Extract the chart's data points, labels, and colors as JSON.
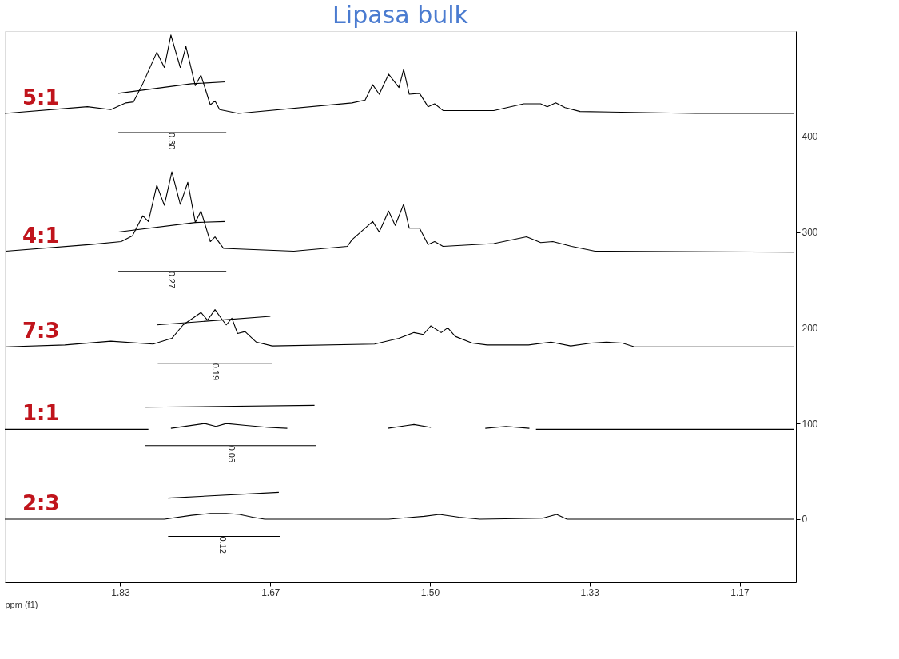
{
  "chart_data": {
    "type": "line",
    "title": "Lipasa bulk",
    "xlabel": "ppm (f1)",
    "xlim": [
      1.953,
      1.11
    ],
    "xticks": [
      1.83,
      1.67,
      {
        "value": 1.5,
        "label": "1.50"
      },
      1.33,
      1.17
    ],
    "ylim": [
      -66,
      510
    ],
    "yticks": [
      0,
      100,
      200,
      300,
      400
    ],
    "grid": false,
    "series": [
      {
        "name": "5:1",
        "color": "#000000",
        "x": [
          1.953,
          1.865,
          1.84,
          1.824,
          1.816,
          1.806,
          1.791,
          1.783,
          1.776,
          1.766,
          1.76,
          1.75,
          1.744,
          1.734,
          1.729,
          1.724,
          1.704,
          1.583,
          1.569,
          1.561,
          1.554,
          1.544,
          1.533,
          1.528,
          1.522,
          1.511,
          1.502,
          1.495,
          1.486,
          1.432,
          1.4,
          1.382,
          1.375,
          1.366,
          1.356,
          1.34,
          1.217,
          1.112
        ],
        "values": [
          424,
          431,
          428,
          435,
          436,
          455,
          488,
          472,
          506,
          472,
          494,
          453,
          464,
          433,
          437,
          428,
          424,
          435,
          438,
          454,
          444,
          465,
          451,
          470,
          444,
          445,
          431,
          434,
          427,
          427,
          434,
          434,
          431,
          435,
          430,
          426,
          424,
          424
        ]
      },
      {
        "name": "4:1",
        "color": "#000000",
        "x": [
          1.952,
          1.861,
          1.829,
          1.817,
          1.806,
          1.8,
          1.791,
          1.783,
          1.775,
          1.766,
          1.758,
          1.75,
          1.744,
          1.734,
          1.729,
          1.72,
          1.645,
          1.588,
          1.583,
          1.561,
          1.554,
          1.544,
          1.537,
          1.528,
          1.522,
          1.511,
          1.502,
          1.495,
          1.486,
          1.432,
          1.397,
          1.382,
          1.369,
          1.349,
          1.324,
          1.112
        ],
        "values": [
          280,
          287,
          290,
          296,
          317,
          311,
          349,
          328,
          363,
          329,
          352,
          310,
          322,
          290,
          295,
          283,
          280,
          285,
          292,
          311,
          300,
          322,
          307,
          329,
          304,
          304,
          287,
          290,
          285,
          288,
          295,
          289,
          290,
          285,
          280,
          279
        ]
      },
      {
        "name": "7:3",
        "color": "#000000",
        "x": [
          1.952,
          1.889,
          1.84,
          1.795,
          1.775,
          1.763,
          1.744,
          1.737,
          1.729,
          1.721,
          1.717,
          1.711,
          1.705,
          1.697,
          1.685,
          1.668,
          1.559,
          1.533,
          1.517,
          1.507,
          1.499,
          1.488,
          1.481,
          1.473,
          1.455,
          1.439,
          1.395,
          1.371,
          1.35,
          1.328,
          1.312,
          1.295,
          1.282,
          1.112
        ],
        "values": [
          180,
          182,
          186,
          183,
          189,
          203,
          216,
          208,
          219,
          208,
          203,
          210,
          194,
          196,
          185,
          181,
          183,
          189,
          195,
          193,
          202,
          195,
          200,
          191,
          184,
          182,
          182,
          185,
          181,
          184,
          185,
          184,
          180,
          180
        ]
      },
      {
        "name": "1:1",
        "color": "#000000",
        "x": [
          1.953,
          1.8,
          1.788,
          1.776,
          1.74,
          1.728,
          1.717,
          1.696,
          1.672,
          1.652,
          1.599,
          1.545,
          1.517,
          1.499,
          1.471,
          1.441,
          1.419,
          1.394,
          1.39,
          1.387,
          1.112
        ],
        "values": [
          94,
          94,
          null,
          95,
          100,
          97,
          100,
          98,
          96,
          95,
          null,
          95,
          99,
          96,
          null,
          95,
          97,
          95,
          null,
          94,
          94
        ]
      },
      {
        "name": "2:3",
        "color": "#000000",
        "x": [
          1.953,
          1.837,
          1.783,
          1.754,
          1.734,
          1.717,
          1.703,
          1.689,
          1.676,
          1.544,
          1.506,
          1.49,
          1.469,
          1.447,
          1.38,
          1.365,
          1.354,
          1.279,
          1.112
        ],
        "values": [
          0,
          0,
          0,
          4,
          6,
          6,
          5,
          2,
          0,
          0,
          3,
          5,
          2,
          0,
          1,
          5,
          0,
          0,
          0
        ]
      },
      {
        "color": "#000000",
        "x": [
          1.832,
          1.754,
          1.718
        ],
        "values": [
          445,
          455,
          457
        ]
      },
      {
        "color": "#000000",
        "x": [
          1.832,
          1.75,
          1.718
        ],
        "values": [
          300,
          310,
          311
        ]
      },
      {
        "color": "#000000",
        "x": [
          1.791,
          1.67
        ],
        "values": [
          203,
          212
        ]
      },
      {
        "color": "#000000",
        "x": [
          1.803,
          1.623
        ],
        "values": [
          117,
          119
        ]
      },
      {
        "color": "#000000",
        "x": [
          1.779,
          1.661
        ],
        "values": [
          22,
          28
        ]
      },
      {
        "color": "#000000",
        "x": [
          1.832,
          1.717
        ],
        "values": [
          404,
          404
        ]
      },
      {
        "color": "#000000",
        "x": [
          1.832,
          1.717
        ],
        "values": [
          259,
          259
        ]
      },
      {
        "color": "#000000",
        "x": [
          1.79,
          1.668
        ],
        "values": [
          163,
          163
        ]
      },
      {
        "color": "#000000",
        "x": [
          1.804,
          1.621
        ],
        "values": [
          77,
          77
        ]
      },
      {
        "color": "#000000",
        "x": [
          1.779,
          1.66
        ],
        "values": [
          -18,
          -18
        ]
      }
    ],
    "annotations": [
      {
        "text": "0.30",
        "x": 1.776,
        "y": 404
      },
      {
        "text": "0.27",
        "x": 1.776,
        "y": 259
      },
      {
        "text": "0.19",
        "x": 1.729,
        "y": 163
      },
      {
        "text": "0.05",
        "x": 1.712,
        "y": 77
      },
      {
        "text": "0.12",
        "x": 1.721,
        "y": -18
      }
    ]
  }
}
